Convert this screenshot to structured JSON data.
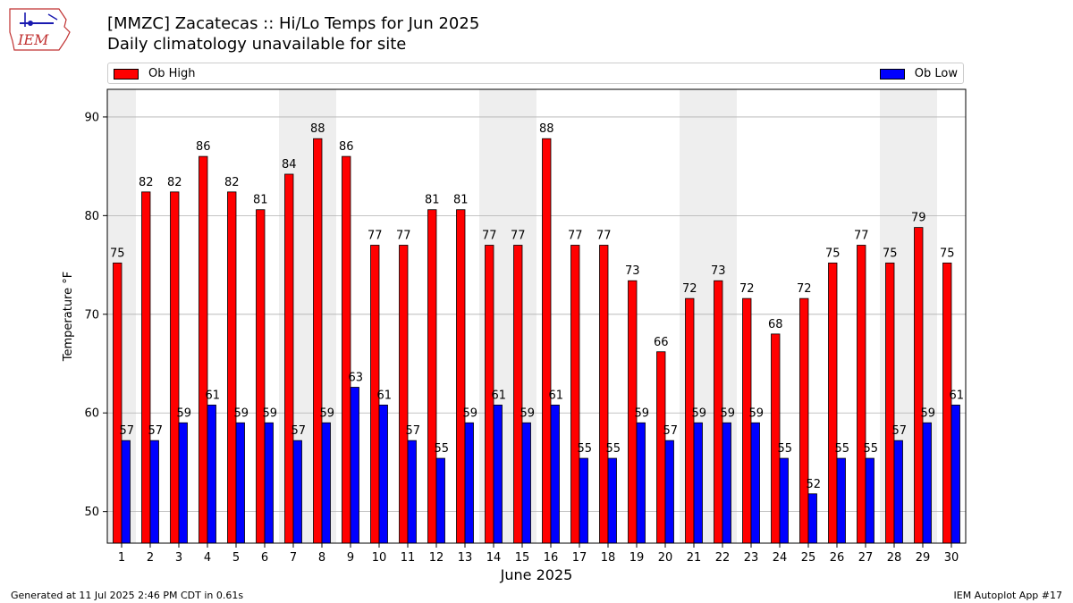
{
  "header": {
    "title": "[MMZC] Zacatecas :: Hi/Lo Temps for Jun 2025",
    "subtitle": "Daily climatology unavailable for site",
    "logo_text": "IEM"
  },
  "legend": {
    "high_label": "Ob High",
    "low_label": "Ob Low",
    "placement": "top (spanning)"
  },
  "footer": {
    "left": "Generated at 11 Jul 2025 2:46 PM CDT in 0.61s",
    "right": "IEM Autoplot App #17"
  },
  "colors": {
    "high": "#ff0000",
    "low": "#0000ff",
    "weekend_shade": "#eeeeee",
    "grid": "#b0b0b0"
  },
  "chart_data": {
    "type": "bar",
    "title": "[MMZC] Zacatecas :: Hi/Lo Temps for Jun 2025",
    "subtitle": "Daily climatology unavailable for site",
    "xlabel": "June 2025",
    "ylabel": "Temperature °F",
    "ylim": [
      46.8,
      92.8
    ],
    "yticks": [
      50,
      60,
      70,
      80,
      90
    ],
    "grid": true,
    "categories": [
      "1",
      "2",
      "3",
      "4",
      "5",
      "6",
      "7",
      "8",
      "9",
      "10",
      "11",
      "12",
      "13",
      "14",
      "15",
      "16",
      "17",
      "18",
      "19",
      "20",
      "21",
      "22",
      "23",
      "24",
      "25",
      "26",
      "27",
      "28",
      "29",
      "30"
    ],
    "shaded_days": [
      1,
      7,
      8,
      14,
      15,
      21,
      22,
      28,
      29
    ],
    "series": [
      {
        "name": "Ob High",
        "values": [
          75.2,
          82.4,
          82.4,
          86.0,
          82.4,
          80.6,
          84.2,
          87.8,
          86.0,
          77.0,
          77.0,
          80.6,
          80.6,
          77.0,
          77.0,
          87.8,
          77.0,
          77.0,
          73.4,
          66.2,
          71.6,
          73.4,
          71.6,
          68.0,
          71.6,
          75.2,
          77.0,
          75.2,
          78.8,
          75.2
        ],
        "labels": [
          "75",
          "82",
          "82",
          "86",
          "82",
          "81",
          "84",
          "88",
          "86",
          "77",
          "77",
          "81",
          "81",
          "77",
          "77",
          "88",
          "77",
          "77",
          "73",
          "66",
          "72",
          "73",
          "72",
          "68",
          "72",
          "75",
          "77",
          "75",
          "79",
          "75"
        ]
      },
      {
        "name": "Ob Low",
        "values": [
          57.2,
          57.2,
          59.0,
          60.8,
          59.0,
          59.0,
          57.2,
          59.0,
          62.6,
          60.8,
          57.2,
          55.4,
          59.0,
          60.8,
          59.0,
          60.8,
          55.4,
          55.4,
          59.0,
          57.2,
          59.0,
          59.0,
          59.0,
          55.4,
          51.8,
          55.4,
          55.4,
          57.2,
          59.0,
          60.8
        ],
        "labels": [
          "57",
          "57",
          "59",
          "61",
          "59",
          "59",
          "57",
          "59",
          "63",
          "61",
          "57",
          "55",
          "59",
          "61",
          "59",
          "61",
          "55",
          "55",
          "59",
          "57",
          "59",
          "59",
          "59",
          "55",
          "52",
          "55",
          "55",
          "57",
          "59",
          "61"
        ]
      }
    ]
  }
}
